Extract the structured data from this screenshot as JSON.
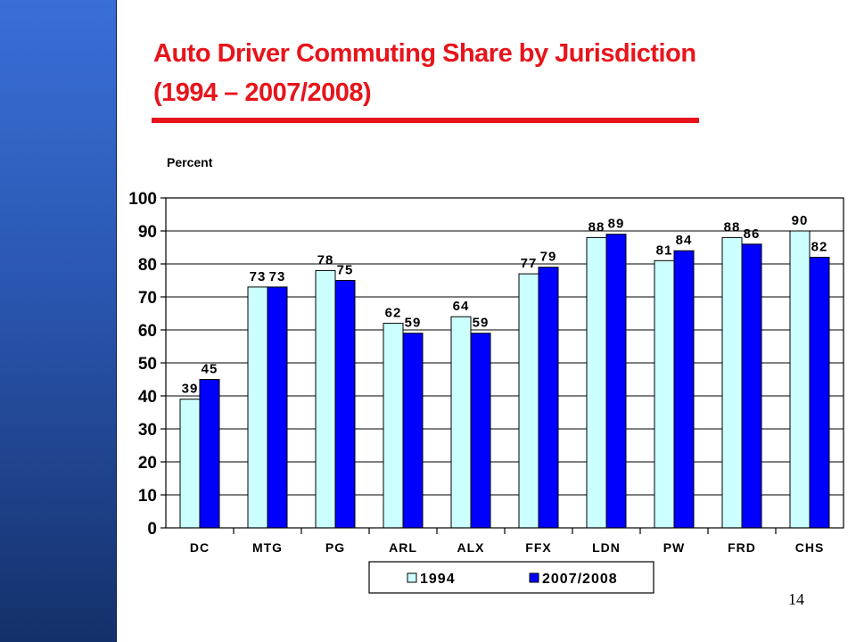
{
  "slide": {
    "title_line1": "Auto Driver Commuting Share by Jurisdiction",
    "title_line2": "(1994 – 2007/2008)",
    "page_number": "14",
    "accent_color": "#e8141b",
    "sidebar_color": "#2a56b0"
  },
  "chart_data": {
    "type": "bar",
    "title": "",
    "ylabel": "Percent",
    "xlabel": "",
    "categories": [
      "DC",
      "MTG",
      "PG",
      "ARL",
      "ALX",
      "FFX",
      "LDN",
      "PW",
      "FRD",
      "CHS"
    ],
    "series": [
      {
        "name": "1994",
        "values": [
          39,
          73,
          78,
          62,
          64,
          77,
          88,
          81,
          88,
          90
        ],
        "color": "#ccffff"
      },
      {
        "name": "2007/2008",
        "values": [
          45,
          73,
          75,
          59,
          59,
          79,
          89,
          84,
          86,
          82
        ],
        "color": "#0000ff"
      }
    ],
    "ylim": [
      0,
      100
    ],
    "yticks": [
      0,
      10,
      20,
      30,
      40,
      50,
      60,
      70,
      80,
      90,
      100
    ],
    "grid": true,
    "legend_position": "bottom",
    "data_labels": true
  }
}
